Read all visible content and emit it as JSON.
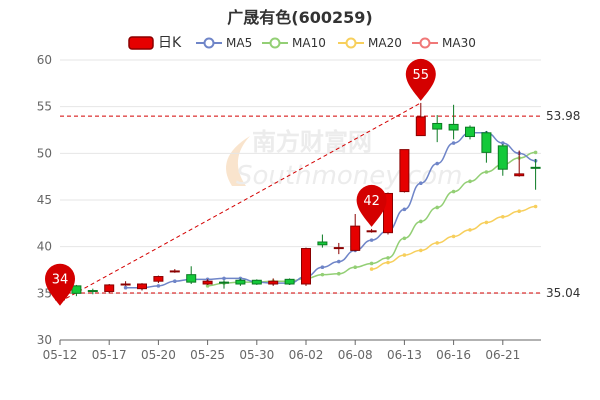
{
  "chart_data": {
    "type": "candlestick",
    "title": "广晟有色(600259)",
    "ylim": [
      30,
      60
    ],
    "yticks": [
      30,
      35,
      40,
      45,
      50,
      55,
      60
    ],
    "xtick_labels": [
      {
        "index": 0,
        "label": "05-12"
      },
      {
        "index": 3,
        "label": "05-17"
      },
      {
        "index": 6,
        "label": "05-20"
      },
      {
        "index": 9,
        "label": "05-25"
      },
      {
        "index": 12,
        "label": "05-30"
      },
      {
        "index": 15,
        "label": "06-02"
      },
      {
        "index": 18,
        "label": "06-08"
      },
      {
        "index": 21,
        "label": "06-13"
      },
      {
        "index": 24,
        "label": "06-16"
      },
      {
        "index": 27,
        "label": "06-21"
      }
    ],
    "legend": [
      {
        "key": "k",
        "label": "日K",
        "color": "#e60000"
      },
      {
        "key": "ma5",
        "label": "MA5",
        "color": "#6f85c8"
      },
      {
        "key": "ma10",
        "label": "MA10",
        "color": "#93cf75"
      },
      {
        "key": "ma20",
        "label": "MA20",
        "color": "#f7cf5c"
      },
      {
        "key": "ma30",
        "label": "MA30",
        "color": "#f07878"
      }
    ],
    "candles": [
      {
        "o": 34.3,
        "c": 35.8,
        "h": 35.9,
        "l": 34.1
      },
      {
        "o": 35.8,
        "c": 35.0,
        "h": 35.9,
        "l": 34.7
      },
      {
        "o": 35.3,
        "c": 35.2,
        "h": 35.5,
        "l": 34.9
      },
      {
        "o": 35.2,
        "c": 35.9,
        "h": 36.0,
        "l": 35.0
      },
      {
        "o": 36.0,
        "c": 36.0,
        "h": 36.3,
        "l": 35.8
      },
      {
        "o": 35.5,
        "c": 36.0,
        "h": 36.1,
        "l": 35.3
      },
      {
        "o": 36.3,
        "c": 36.8,
        "h": 36.9,
        "l": 36.1
      },
      {
        "o": 37.3,
        "c": 37.4,
        "h": 37.6,
        "l": 37.2
      },
      {
        "o": 37.0,
        "c": 36.2,
        "h": 37.9,
        "l": 36.0
      },
      {
        "o": 36.0,
        "c": 36.3,
        "h": 36.5,
        "l": 35.9
      },
      {
        "o": 36.2,
        "c": 36.1,
        "h": 36.4,
        "l": 35.5
      },
      {
        "o": 36.4,
        "c": 36.0,
        "h": 36.6,
        "l": 35.8
      },
      {
        "o": 36.4,
        "c": 36.0,
        "h": 36.5,
        "l": 35.9
      },
      {
        "o": 36.0,
        "c": 36.3,
        "h": 36.6,
        "l": 35.8
      },
      {
        "o": 36.5,
        "c": 36.0,
        "h": 36.6,
        "l": 35.9
      },
      {
        "o": 36.0,
        "c": 39.8,
        "h": 39.9,
        "l": 35.8
      },
      {
        "o": 40.5,
        "c": 40.2,
        "h": 41.3,
        "l": 39.9
      },
      {
        "o": 39.8,
        "c": 39.9,
        "h": 40.4,
        "l": 39.2
      },
      {
        "o": 39.6,
        "c": 42.2,
        "h": 43.5,
        "l": 39.5
      },
      {
        "o": 41.6,
        "c": 41.7,
        "h": 41.9,
        "l": 41.5
      },
      {
        "o": 41.5,
        "c": 45.7,
        "h": 45.8,
        "l": 41.3
      },
      {
        "o": 45.9,
        "c": 50.4,
        "h": 50.4,
        "l": 45.8
      },
      {
        "o": 51.9,
        "c": 53.9,
        "h": 55.4,
        "l": 51.9
      },
      {
        "o": 53.2,
        "c": 52.6,
        "h": 54.1,
        "l": 51.2
      },
      {
        "o": 53.1,
        "c": 52.5,
        "h": 55.2,
        "l": 51.5
      },
      {
        "o": 52.8,
        "c": 51.8,
        "h": 53.0,
        "l": 51.5
      },
      {
        "o": 52.2,
        "c": 50.1,
        "h": 52.4,
        "l": 49.0
      },
      {
        "o": 50.8,
        "c": 48.3,
        "h": 51.0,
        "l": 47.6
      },
      {
        "o": 47.6,
        "c": 47.8,
        "h": 50.3,
        "l": 47.5
      },
      {
        "o": 48.5,
        "c": 48.4,
        "h": 49.4,
        "l": 46.1
      }
    ],
    "ma5": [
      null,
      null,
      null,
      null,
      35.6,
      35.6,
      35.8,
      36.3,
      36.5,
      36.5,
      36.6,
      36.6,
      36.2,
      36.1,
      36.1,
      36.8,
      37.8,
      38.4,
      39.6,
      40.7,
      41.7,
      44.0,
      46.8,
      48.9,
      51.1,
      52.2,
      52.2,
      51.1,
      50.0,
      49.2
    ],
    "ma10": [
      null,
      null,
      null,
      null,
      null,
      null,
      null,
      null,
      null,
      35.8,
      36.1,
      36.2,
      36.2,
      36.3,
      36.3,
      36.6,
      37.0,
      37.1,
      37.8,
      38.2,
      38.8,
      40.9,
      42.7,
      44.2,
      45.9,
      47.0,
      48.0,
      48.8,
      49.5,
      50.1
    ],
    "ma20": [
      null,
      null,
      null,
      null,
      null,
      null,
      null,
      null,
      null,
      null,
      null,
      null,
      null,
      null,
      null,
      null,
      null,
      null,
      null,
      37.6,
      38.3,
      39.1,
      39.6,
      40.4,
      41.1,
      41.8,
      42.6,
      43.2,
      43.8,
      44.3
    ],
    "ma30": [],
    "ref_lines": [
      {
        "value": 53.98,
        "label": "53.98"
      },
      {
        "value": 35.04,
        "label": "35.04"
      }
    ],
    "markers": [
      {
        "index": 0,
        "value": 34,
        "label": "34"
      },
      {
        "index": 19,
        "value": 42,
        "label": "42"
      },
      {
        "index": 22,
        "value": 55,
        "label": "55"
      }
    ],
    "up_color": "#e60000",
    "down_color": "#14c93a",
    "grid": true
  }
}
